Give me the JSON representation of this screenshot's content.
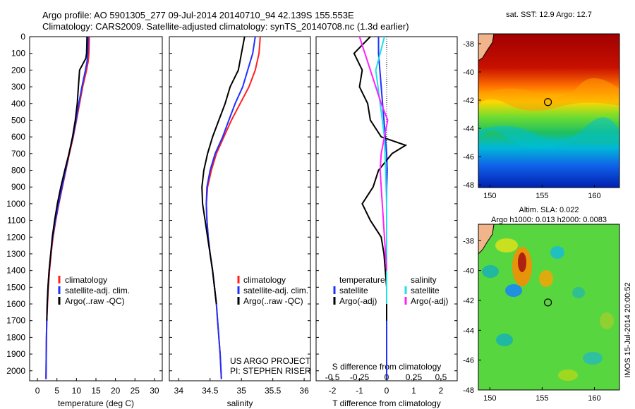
{
  "header": {
    "title_line1": "Argo profile: AO 5901305_277 09-Jul-2014 20140710_94 42.139S 155.553E",
    "title_line2": "Climatology: CARS2009. Satellite-adjusted climatology: synTS_20140708.nc (1.3d earlier)"
  },
  "colors": {
    "climatology": "#ff2020",
    "satellite": "#2030ff",
    "argo": "#000000",
    "sal_satellite": "#20e0e0",
    "sal_argo": "#ff20ff"
  },
  "depth_axis": {
    "ticks": [
      "0",
      "100",
      "200",
      "300",
      "400",
      "500",
      "600",
      "700",
      "800",
      "900",
      "1000",
      "1100",
      "1200",
      "1300",
      "1400",
      "1500",
      "1600",
      "1700",
      "1800",
      "1900",
      "2000"
    ],
    "ylim": [
      0,
      2060
    ]
  },
  "panels": {
    "temperature": {
      "xlabel": "temperature (deg C)",
      "xticks": [
        "0",
        "5",
        "10",
        "15",
        "20",
        "25",
        "30"
      ],
      "xlim": [
        -2,
        32
      ],
      "legend": [
        "climatology",
        "satellite-adj. clim.",
        "Argo(..raw -QC)"
      ]
    },
    "salinity": {
      "xlabel": "salinity",
      "xticks": [
        "34",
        "34.5",
        "35",
        "35.5",
        "36"
      ],
      "xlim": [
        33.85,
        36.1
      ],
      "legend": [
        "climatology",
        "satellite-adj. clim.",
        "Argo(..raw -QC)"
      ],
      "credit_line1": "US ARGO PROJECT",
      "credit_line2": "PI: STEPHEN RISER"
    },
    "difference": {
      "xlabel": "T difference from climatology",
      "top_label": "S difference from climatology",
      "s_ticks": [
        "-0.5",
        "-0.25",
        "0",
        "0.25",
        "0.5"
      ],
      "t_ticks": [
        "-2",
        "-1",
        "0",
        "1",
        "2"
      ],
      "xlim": [
        -2.6,
        2.6
      ],
      "legend_temp_head": "temperature",
      "legend_temp": [
        "satellite",
        "Argo(-adj)"
      ],
      "legend_sal_head": "salinity",
      "legend_sal": [
        "satellite",
        "Argo(-adj)"
      ]
    }
  },
  "maps": {
    "sst": {
      "title": "sat. SST: 12.9 Argo: 12.7",
      "yticks": [
        "-38",
        "-40",
        "-42",
        "-44",
        "-46",
        "-48"
      ],
      "xticks": [
        "150",
        "155",
        "160"
      ]
    },
    "sla": {
      "title_line1": "Altim. SLA: 0.022",
      "title_line2": "Argo h1000: 0.013 h2000: 0.0083",
      "yticks": [
        "-38",
        "-40",
        "-42",
        "-44",
        "-46",
        "-48"
      ],
      "xticks": [
        "150",
        "155",
        "160"
      ]
    },
    "argo_position": {
      "lon": 155.553,
      "lat": -42.139
    }
  },
  "footer_stamp": "IMOS 15-Jul-2014 20:00:52",
  "chart_data": [
    {
      "type": "line",
      "y_name": "depth",
      "series": [
        {
          "name": "climatology",
          "x": [
            13.3,
            13.2,
            13.0,
            12.6,
            11.6,
            10.8,
            10.0,
            9.2,
            8.2,
            7.3,
            6.4,
            5.5,
            4.7,
            4.0,
            3.5,
            3.1,
            2.8,
            2.6,
            2.4,
            2.3,
            2.2
          ],
          "y": [
            0,
            100,
            150,
            200,
            300,
            400,
            500,
            600,
            700,
            800,
            900,
            1000,
            1100,
            1200,
            1300,
            1400,
            1500,
            1600,
            1700,
            1800,
            2050
          ]
        },
        {
          "name": "satellite-adj. clim.",
          "x": [
            13.0,
            12.9,
            12.7,
            12.3,
            11.4,
            10.6,
            9.9,
            9.1,
            8.1,
            7.2,
            6.3,
            5.4,
            4.6,
            3.9,
            3.4,
            3.0,
            2.7,
            2.5,
            2.4,
            2.3,
            2.2
          ],
          "y": [
            0,
            100,
            150,
            200,
            300,
            400,
            500,
            600,
            700,
            800,
            900,
            1000,
            1100,
            1200,
            1300,
            1400,
            1500,
            1600,
            1700,
            1800,
            2050
          ]
        },
        {
          "name": "Argo(..raw -QC)",
          "x": [
            12.7,
            12.6,
            12.4,
            10.8,
            10.5,
            10.2,
            9.7,
            9.0,
            8.1,
            7.0,
            6.0,
            5.1,
            4.4,
            3.8,
            3.4,
            3.0,
            2.7,
            2.5,
            2.4
          ],
          "y": [
            0,
            100,
            130,
            200,
            300,
            400,
            500,
            600,
            700,
            800,
            900,
            1000,
            1100,
            1200,
            1300,
            1400,
            1500,
            1600,
            1700
          ]
        }
      ]
    },
    {
      "type": "line",
      "y_name": "depth",
      "series": [
        {
          "name": "climatology",
          "x": [
            35.3,
            35.28,
            35.22,
            35.12,
            34.98,
            34.84,
            34.72,
            34.6,
            34.52,
            34.46,
            34.44,
            34.45,
            34.47,
            34.5,
            34.54,
            34.57,
            34.6,
            34.62,
            34.64,
            34.66,
            34.68
          ],
          "y": [
            0,
            100,
            200,
            300,
            400,
            500,
            600,
            700,
            800,
            900,
            1000,
            1100,
            1200,
            1300,
            1400,
            1500,
            1600,
            1700,
            1800,
            1900,
            2050
          ]
        },
        {
          "name": "satellite-adj. clim.",
          "x": [
            35.22,
            35.18,
            35.1,
            35.02,
            34.9,
            34.8,
            34.7,
            34.58,
            34.5,
            34.45,
            34.44,
            34.45,
            34.47,
            34.5,
            34.54,
            34.57,
            34.6,
            34.62,
            34.64,
            34.66,
            34.68
          ],
          "y": [
            0,
            100,
            200,
            300,
            400,
            500,
            600,
            700,
            800,
            900,
            1000,
            1100,
            1200,
            1300,
            1400,
            1500,
            1600,
            1700,
            1800,
            1900,
            2050
          ]
        },
        {
          "name": "Argo(..raw -QC)",
          "x": [
            35.05,
            35.0,
            34.95,
            34.82,
            34.74,
            34.64,
            34.54,
            34.46,
            34.4,
            34.37,
            34.38,
            34.42,
            34.46,
            34.5,
            34.54,
            34.57,
            34.6
          ],
          "y": [
            0,
            100,
            200,
            300,
            400,
            500,
            600,
            700,
            800,
            900,
            1000,
            1100,
            1200,
            1300,
            1400,
            1500,
            1600
          ]
        }
      ]
    },
    {
      "type": "line",
      "y_name": "depth",
      "x_name": "T difference from climatology",
      "series": [
        {
          "name": "temperature satellite",
          "x": [
            -0.3,
            -0.3,
            -0.25,
            -0.2,
            -0.15,
            -0.1,
            -0.05,
            0.0,
            0.02,
            0.0,
            0.0,
            0.0,
            0.0,
            0.0,
            0.0,
            0.0,
            0.0,
            0.0,
            0.0,
            0.0
          ],
          "y": [
            0,
            100,
            200,
            300,
            400,
            500,
            600,
            700,
            800,
            900,
            1000,
            1100,
            1200,
            1300,
            1400,
            1500,
            1600,
            1700,
            1800,
            2050
          ]
        },
        {
          "name": "temperature Argo(-adj)",
          "x": [
            -0.6,
            -1.2,
            -0.9,
            -1.0,
            -0.7,
            -0.6,
            -0.2,
            0.7,
            0.2,
            -0.3,
            -0.5,
            -0.9,
            -0.6,
            -0.2,
            -0.1,
            0.0,
            0.0
          ],
          "y": [
            0,
            100,
            200,
            300,
            400,
            500,
            600,
            650,
            700,
            800,
            900,
            1000,
            1100,
            1200,
            1300,
            1500,
            1700
          ]
        },
        {
          "name": "salinity satellite",
          "x": [
            -0.02,
            -0.06,
            -0.1,
            -0.06,
            -0.02,
            -0.01,
            0.0,
            0.0,
            0.0
          ],
          "y": [
            0,
            100,
            200,
            400,
            600,
            800,
            1000,
            1200,
            1600
          ]
        },
        {
          "name": "salinity Argo(-adj)",
          "x": [
            -0.25,
            -0.2,
            -0.15,
            -0.1,
            -0.05,
            0.01,
            -0.02,
            -0.05,
            -0.06,
            -0.04,
            -0.02,
            0.0
          ],
          "y": [
            0,
            100,
            200,
            300,
            400,
            500,
            600,
            700,
            800,
            1000,
            1200,
            1400
          ]
        }
      ]
    }
  ]
}
